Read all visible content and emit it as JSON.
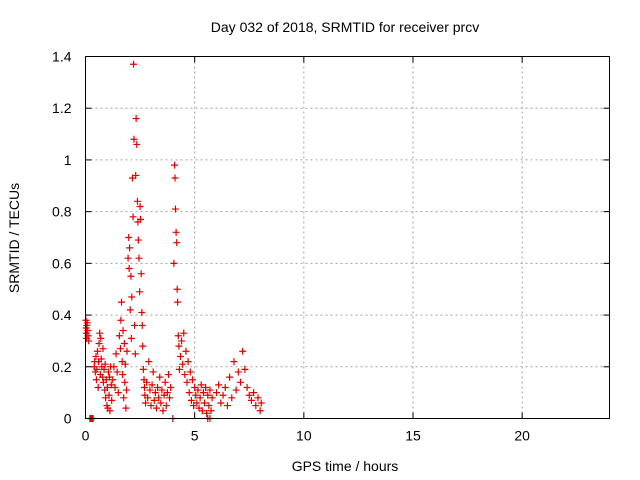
{
  "chart_data": {
    "type": "scatter",
    "title": "Day 032 of 2018, SRMTID for receiver prcv",
    "xlabel": "GPS time / hours",
    "ylabel": "SRMTID / TECUs",
    "xlim": [
      0,
      24
    ],
    "ylim": [
      0,
      1.4
    ],
    "xticks": [
      0,
      5,
      10,
      15,
      20
    ],
    "yticks": [
      0,
      0.2,
      0.4,
      0.6,
      0.8,
      1,
      1.2,
      1.4
    ],
    "xtick_labels": [
      "0",
      "5",
      "10",
      "15",
      "20"
    ],
    "ytick_labels": [
      "0",
      "0.2",
      "0.4",
      "0.6",
      "0.8",
      "1",
      "1.2",
      "1.4"
    ],
    "grid": true,
    "marker": "plus",
    "series": [
      {
        "name": "SRMTID",
        "color": "#e00000",
        "points": [
          [
            0.02,
            0.38
          ],
          [
            0.03,
            0.35
          ],
          [
            0.04,
            0.33
          ],
          [
            0.05,
            0.31
          ],
          [
            0.06,
            0.36
          ],
          [
            0.08,
            0.37
          ],
          [
            0.1,
            0.34
          ],
          [
            0.12,
            0.32
          ],
          [
            0.15,
            0.3
          ],
          [
            0.2,
            0.0
          ],
          [
            0.25,
            0.0
          ],
          [
            0.3,
            0.0
          ],
          [
            0.35,
            0.0
          ],
          [
            0.4,
            0.2
          ],
          [
            0.42,
            0.22
          ],
          [
            0.45,
            0.18
          ],
          [
            0.48,
            0.24
          ],
          [
            0.5,
            0.15
          ],
          [
            0.52,
            0.19
          ],
          [
            0.55,
            0.26
          ],
          [
            0.58,
            0.12
          ],
          [
            0.6,
            0.22
          ],
          [
            0.62,
            0.29
          ],
          [
            0.65,
            0.33
          ],
          [
            0.68,
            0.17
          ],
          [
            0.7,
            0.31
          ],
          [
            0.72,
            0.23
          ],
          [
            0.75,
            0.2
          ],
          [
            0.78,
            0.16
          ],
          [
            0.8,
            0.27
          ],
          [
            0.82,
            0.14
          ],
          [
            0.85,
            0.19
          ],
          [
            0.88,
            0.11
          ],
          [
            0.9,
            0.21
          ],
          [
            0.92,
            0.08
          ],
          [
            0.95,
            0.15
          ],
          [
            0.98,
            0.05
          ],
          [
            1.0,
            0.12
          ],
          [
            1.02,
            0.04
          ],
          [
            1.05,
            0.18
          ],
          [
            1.08,
            0.09
          ],
          [
            1.1,
            0.16
          ],
          [
            1.12,
            0.03
          ],
          [
            1.15,
            0.2
          ],
          [
            1.18,
            0.13
          ],
          [
            1.2,
            0.07
          ],
          [
            1.25,
            0.15
          ],
          [
            1.3,
            0.2
          ],
          [
            1.35,
            0.12
          ],
          [
            1.4,
            0.25
          ],
          [
            1.45,
            0.18
          ],
          [
            1.5,
            0.1
          ],
          [
            1.55,
            0.32
          ],
          [
            1.6,
            0.27
          ],
          [
            1.62,
            0.38
          ],
          [
            1.65,
            0.45
          ],
          [
            1.68,
            0.22
          ],
          [
            1.7,
            0.17
          ],
          [
            1.72,
            0.34
          ],
          [
            1.75,
            0.08
          ],
          [
            1.78,
            0.29
          ],
          [
            1.8,
            0.14
          ],
          [
            1.82,
            0.21
          ],
          [
            1.85,
            0.04
          ],
          [
            1.88,
            0.11
          ],
          [
            1.9,
            0.26
          ],
          [
            1.95,
            0.62
          ],
          [
            1.98,
            0.7
          ],
          [
            2.0,
            0.58
          ],
          [
            2.02,
            0.66
          ],
          [
            2.05,
            0.42
          ],
          [
            2.08,
            0.55
          ],
          [
            2.1,
            0.31
          ],
          [
            2.12,
            0.47
          ],
          [
            2.15,
            0.93
          ],
          [
            2.18,
            0.78
          ],
          [
            2.2,
            1.37
          ],
          [
            2.22,
            1.08
          ],
          [
            2.25,
            0.36
          ],
          [
            2.28,
            0.25
          ],
          [
            2.3,
            0.94
          ],
          [
            2.32,
            1.16
          ],
          [
            2.35,
            1.06
          ],
          [
            2.38,
            0.84
          ],
          [
            2.4,
            0.76
          ],
          [
            2.42,
            0.69
          ],
          [
            2.45,
            0.62
          ],
          [
            2.48,
            0.49
          ],
          [
            2.5,
            0.82
          ],
          [
            2.52,
            0.77
          ],
          [
            2.55,
            0.56
          ],
          [
            2.58,
            0.41
          ],
          [
            2.6,
            0.36
          ],
          [
            2.62,
            0.28
          ],
          [
            2.65,
            0.19
          ],
          [
            2.68,
            0.15
          ],
          [
            2.7,
            0.12
          ],
          [
            2.72,
            0.09
          ],
          [
            2.75,
            0.06
          ],
          [
            2.8,
            0.14
          ],
          [
            2.85,
            0.08
          ],
          [
            2.9,
            0.22
          ],
          [
            2.95,
            0.11
          ],
          [
            3.0,
            0.05
          ],
          [
            3.05,
            0.13
          ],
          [
            3.1,
            0.18
          ],
          [
            3.15,
            0.07
          ],
          [
            3.2,
            0.1
          ],
          [
            3.25,
            0.04
          ],
          [
            3.3,
            0.12
          ],
          [
            3.35,
            0.08
          ],
          [
            3.4,
            0.16
          ],
          [
            3.45,
            0.06
          ],
          [
            3.5,
            0.11
          ],
          [
            3.55,
            0.03
          ],
          [
            3.6,
            0.09
          ],
          [
            3.65,
            0.14
          ],
          [
            3.7,
            0.05
          ],
          [
            3.75,
            0.1
          ],
          [
            3.8,
            0.17
          ],
          [
            3.85,
            0.08
          ],
          [
            3.9,
            0.12
          ],
          [
            4.0,
            0.0
          ],
          [
            4.05,
            0.6
          ],
          [
            4.08,
            0.98
          ],
          [
            4.1,
            0.93
          ],
          [
            4.12,
            0.81
          ],
          [
            4.15,
            0.72
          ],
          [
            4.18,
            0.68
          ],
          [
            4.2,
            0.5
          ],
          [
            4.22,
            0.45
          ],
          [
            4.25,
            0.32
          ],
          [
            4.28,
            0.28
          ],
          [
            4.3,
            0.19
          ],
          [
            4.35,
            0.24
          ],
          [
            4.4,
            0.3
          ],
          [
            4.45,
            0.21
          ],
          [
            4.5,
            0.33
          ],
          [
            4.55,
            0.17
          ],
          [
            4.6,
            0.26
          ],
          [
            4.65,
            0.14
          ],
          [
            4.7,
            0.22
          ],
          [
            4.75,
            0.1
          ],
          [
            4.8,
            0.18
          ],
          [
            4.85,
            0.07
          ],
          [
            4.9,
            0.15
          ],
          [
            4.95,
            0.05
          ],
          [
            5.0,
            0.12
          ],
          [
            5.05,
            0.09
          ],
          [
            5.1,
            0.06
          ],
          [
            5.15,
            0.11
          ],
          [
            5.2,
            0.04
          ],
          [
            5.25,
            0.08
          ],
          [
            5.3,
            0.13
          ],
          [
            5.35,
            0.03
          ],
          [
            5.4,
            0.1
          ],
          [
            5.45,
            0.06
          ],
          [
            5.5,
            0.12
          ],
          [
            5.55,
            0.02
          ],
          [
            5.6,
            0.09
          ],
          [
            5.65,
            0.05
          ],
          [
            5.7,
            0.11
          ],
          [
            5.75,
            0.03
          ],
          [
            5.8,
            0.08
          ],
          [
            5.6,
            0.0
          ],
          [
            5.7,
            0.0
          ],
          [
            6.0,
            0.1
          ],
          [
            6.1,
            0.13
          ],
          [
            6.2,
            0.06
          ],
          [
            6.3,
            0.09
          ],
          [
            6.4,
            0.12
          ],
          [
            6.5,
            0.05
          ],
          [
            6.6,
            0.16
          ],
          [
            6.7,
            0.08
          ],
          [
            6.8,
            0.22
          ],
          [
            6.9,
            0.11
          ],
          [
            7.0,
            0.18
          ],
          [
            7.1,
            0.14
          ],
          [
            7.2,
            0.26
          ],
          [
            7.3,
            0.19
          ],
          [
            7.4,
            0.12
          ],
          [
            7.5,
            0.09
          ],
          [
            7.6,
            0.07
          ],
          [
            7.7,
            0.1
          ],
          [
            7.8,
            0.05
          ],
          [
            7.9,
            0.08
          ],
          [
            8.0,
            0.03
          ],
          [
            8.05,
            0.06
          ]
        ]
      }
    ]
  }
}
